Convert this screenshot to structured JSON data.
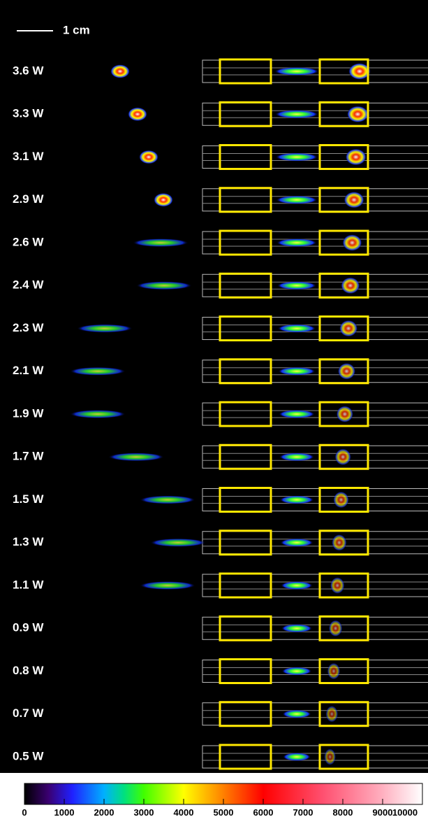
{
  "scale_bar": {
    "label": "1 cm"
  },
  "rows": [
    {
      "label": "3.6 W"
    },
    {
      "label": "3.3 W"
    },
    {
      "label": "3.1 W"
    },
    {
      "label": "2.9 W"
    },
    {
      "label": "2.6 W"
    },
    {
      "label": "2.4 W"
    },
    {
      "label": "2.3 W"
    },
    {
      "label": "2.1 W"
    },
    {
      "label": "1.9 W"
    },
    {
      "label": "1.7 W"
    },
    {
      "label": "1.5 W"
    },
    {
      "label": "1.3 W"
    },
    {
      "label": "1.1 W"
    },
    {
      "label": "0.9 W"
    },
    {
      "label": "0.8 W"
    },
    {
      "label": "0.7 W"
    },
    {
      "label": "0.5 W"
    }
  ],
  "colorbar": {
    "ticks": [
      0,
      1000,
      2000,
      3000,
      4000,
      5000,
      6000,
      7000,
      8000,
      9000,
      10000
    ]
  }
}
